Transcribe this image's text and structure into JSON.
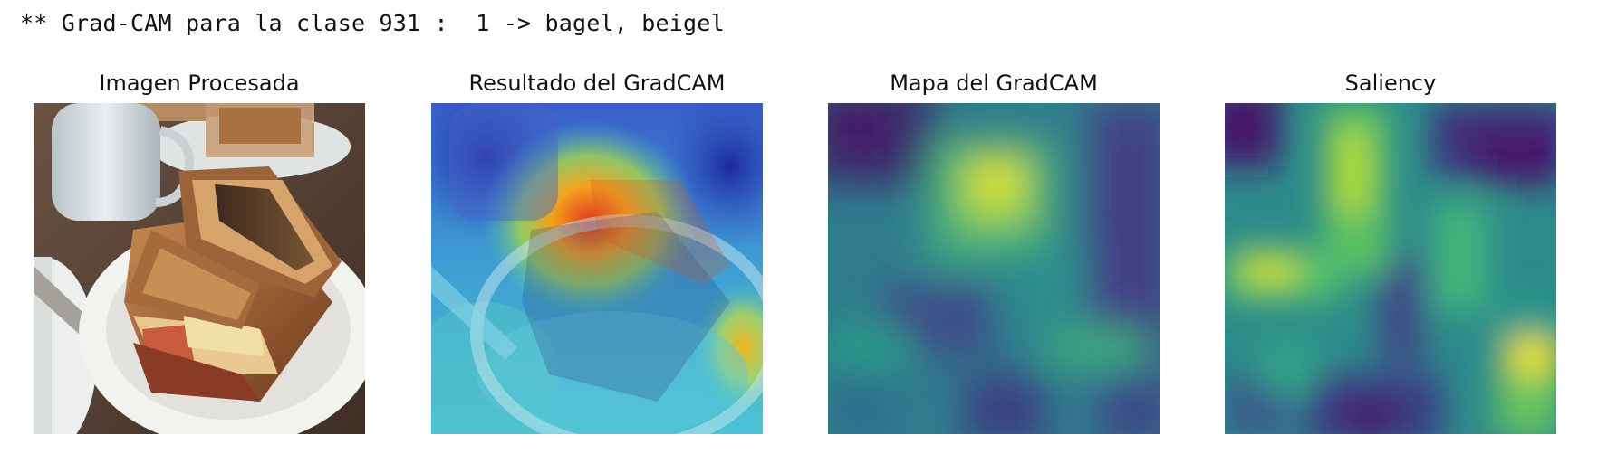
{
  "output": {
    "text": "** Grad-CAM para la clase 931 :  1 -> bagel, beigel"
  },
  "panels": [
    {
      "title": "Imagen Procesada",
      "kind": "photo"
    },
    {
      "title": "Resultado del GradCAM",
      "kind": "overlay"
    },
    {
      "title": "Mapa del GradCAM",
      "kind": "heatmap"
    },
    {
      "title": "Saliency",
      "kind": "saliency"
    }
  ],
  "colors": {
    "viridis_low": "#440154",
    "viridis_mid": "#21918c",
    "viridis_high": "#fde725",
    "jet_hot": "#e8331c",
    "jet_cold": "#2a37c9"
  }
}
